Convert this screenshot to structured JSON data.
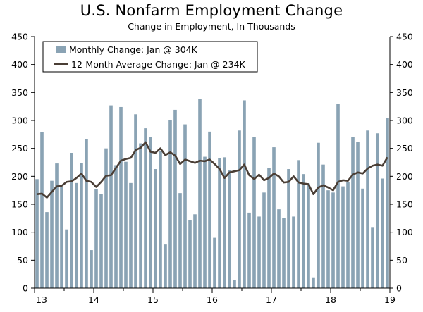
{
  "title": "U.S. Nonfarm Employment Change",
  "subtitle": "Change in Employment, In Thousands",
  "colors": {
    "bar": "#8aa3b4",
    "line": "#4a3e35",
    "axis": "#000000"
  },
  "legend": {
    "bar_label": "Monthly Change: Jan @ 304K",
    "line_label": "12-Month Average Change: Jan @ 234K"
  },
  "chart_data": {
    "type": "bar",
    "title": "U.S. Nonfarm Employment Change",
    "subtitle": "Change in Employment, In Thousands",
    "xlabel": "",
    "ylabel": "",
    "ylim": [
      0,
      450
    ],
    "yticks": [
      0,
      50,
      100,
      150,
      200,
      250,
      300,
      350,
      400,
      450
    ],
    "xtick_labels": [
      "13",
      "14",
      "15",
      "16",
      "17",
      "18",
      "19"
    ],
    "xtick_month_index": [
      0,
      12,
      24,
      36,
      48,
      60,
      72
    ],
    "start": "Jan 2013",
    "end": "Jan 2019",
    "series": [
      {
        "name": "Monthly Change: Jan @ 304K",
        "type": "bar",
        "values": [
          195,
          279,
          136,
          192,
          223,
          181,
          105,
          242,
          188,
          224,
          267,
          68,
          177,
          168,
          250,
          327,
          220,
          324,
          226,
          188,
          311,
          259,
          286,
          270,
          213,
          245,
          78,
          300,
          319,
          170,
          293,
          122,
          132,
          339,
          235,
          280,
          90,
          233,
          234,
          211,
          15,
          282,
          336,
          135,
          270,
          128,
          171,
          215,
          252,
          141,
          126,
          213,
          128,
          229,
          204,
          187,
          18,
          260,
          221,
          175,
          171,
          330,
          182,
          190,
          270,
          262,
          178,
          282,
          108,
          277,
          196,
          304
        ]
      },
      {
        "name": "12-Month Average Change: Jan @ 234K",
        "type": "line",
        "values": [
          168,
          169,
          162,
          172,
          182,
          183,
          190,
          191,
          197,
          205,
          192,
          190,
          181,
          190,
          201,
          202,
          215,
          228,
          231,
          233,
          247,
          251,
          261,
          244,
          242,
          250,
          238,
          243,
          237,
          222,
          230,
          227,
          224,
          228,
          227,
          230,
          222,
          213,
          197,
          207,
          209,
          211,
          221,
          202,
          195,
          203,
          193,
          197,
          205,
          200,
          189,
          190,
          200,
          189,
          187,
          186,
          168,
          180,
          184,
          180,
          175,
          190,
          193,
          192,
          203,
          207,
          205,
          214,
          219,
          221,
          219,
          234
        ]
      }
    ]
  }
}
